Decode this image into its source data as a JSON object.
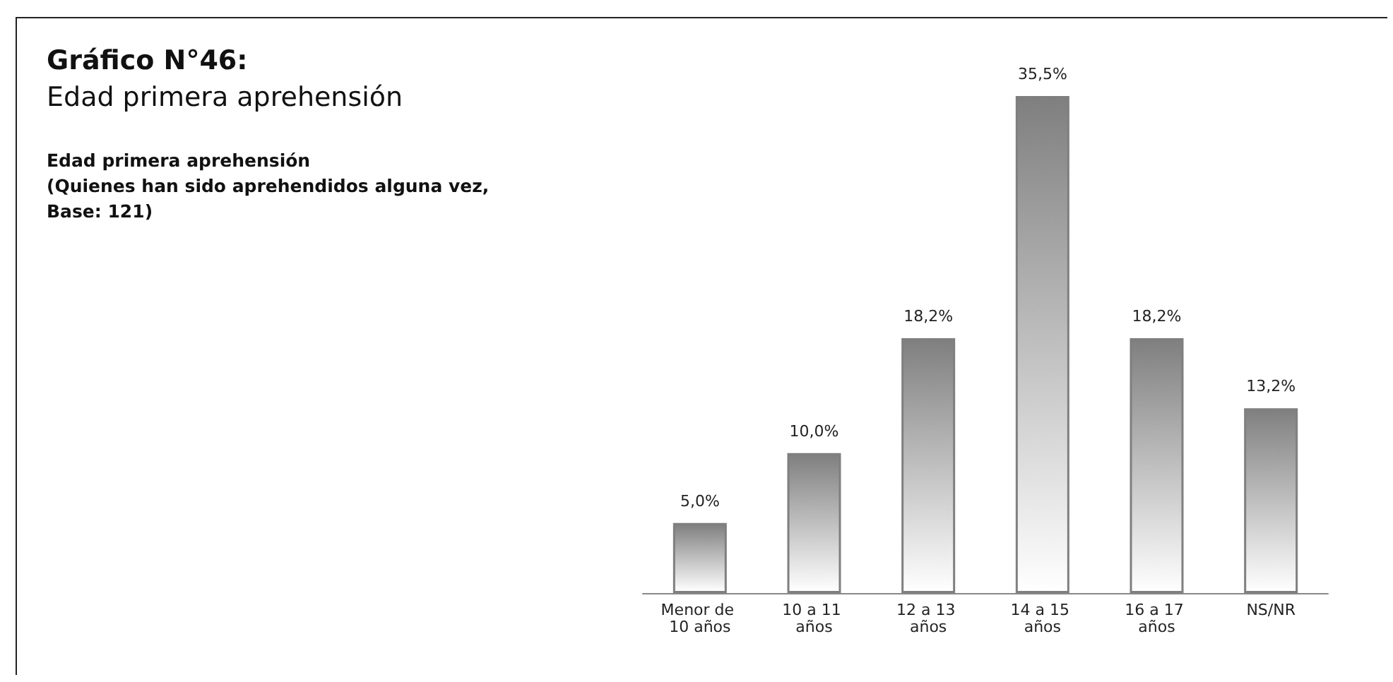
{
  "chart_data": {
    "type": "bar",
    "title": "Gráfico N°46:",
    "subtitle": "Edad primera aprehensión",
    "annotations": [
      "Edad primera aprehensión\n(Quienes han sido aprehendidos alguna vez,\nBase: 121)"
    ],
    "categories": [
      "Menor de 10 años",
      "10 a 11 años",
      "12 a 13 años",
      "14 a 15 años",
      "16 a 17 años",
      "NS/NR"
    ],
    "values": [
      5.0,
      10.0,
      18.2,
      35.5,
      18.2,
      13.2
    ],
    "value_labels": [
      "5,0%",
      "10,0%",
      "18,2%",
      "35,5%",
      "18,2%",
      "13,2%"
    ],
    "color": "#7f7f7f"
  }
}
